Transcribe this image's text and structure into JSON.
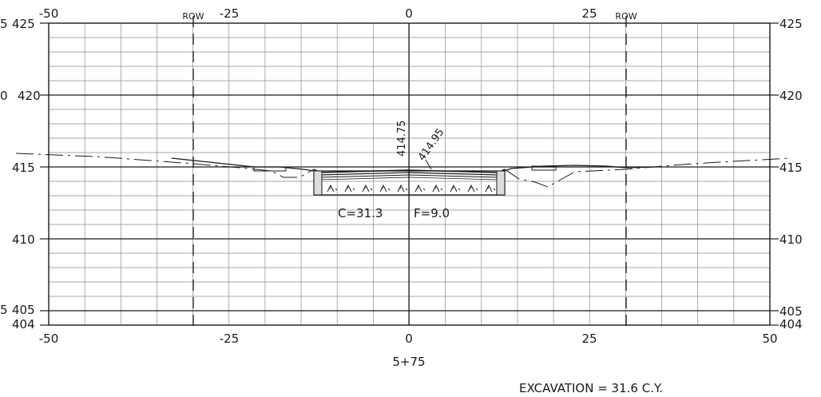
{
  "drawing": {
    "station": "5+75",
    "excavation_label": "EXCAVATION = 31.6 C.Y.",
    "cut_fill_label_cut": "C=31.3",
    "cut_fill_label_fill": "F=9.0",
    "row_left_label": "ROW",
    "row_right_label": "ROW",
    "elev_annotation_1": "414.75",
    "elev_annotation_2": "414.95"
  },
  "axes": {
    "top_x_ticks": [
      "-50",
      "-25",
      "0",
      "25"
    ],
    "bottom_x_ticks": [
      "-50",
      "-25",
      "0",
      "25",
      "50"
    ],
    "left_y_ticks": [
      "425",
      "420",
      "415",
      "410",
      "405",
      "404"
    ],
    "right_y_ticks": [
      "425",
      "420",
      "415",
      "410",
      "405",
      "404"
    ],
    "left_edge_fragments": [
      "5",
      "0",
      "5"
    ],
    "x_range": [
      -50,
      50
    ],
    "y_range": [
      404,
      425
    ],
    "row_offsets": [
      -30,
      30
    ],
    "grid": "on"
  },
  "colors": {
    "ink": "#1a1a1a",
    "grid": "#8a8a8a",
    "paper": "#ffffff"
  }
}
